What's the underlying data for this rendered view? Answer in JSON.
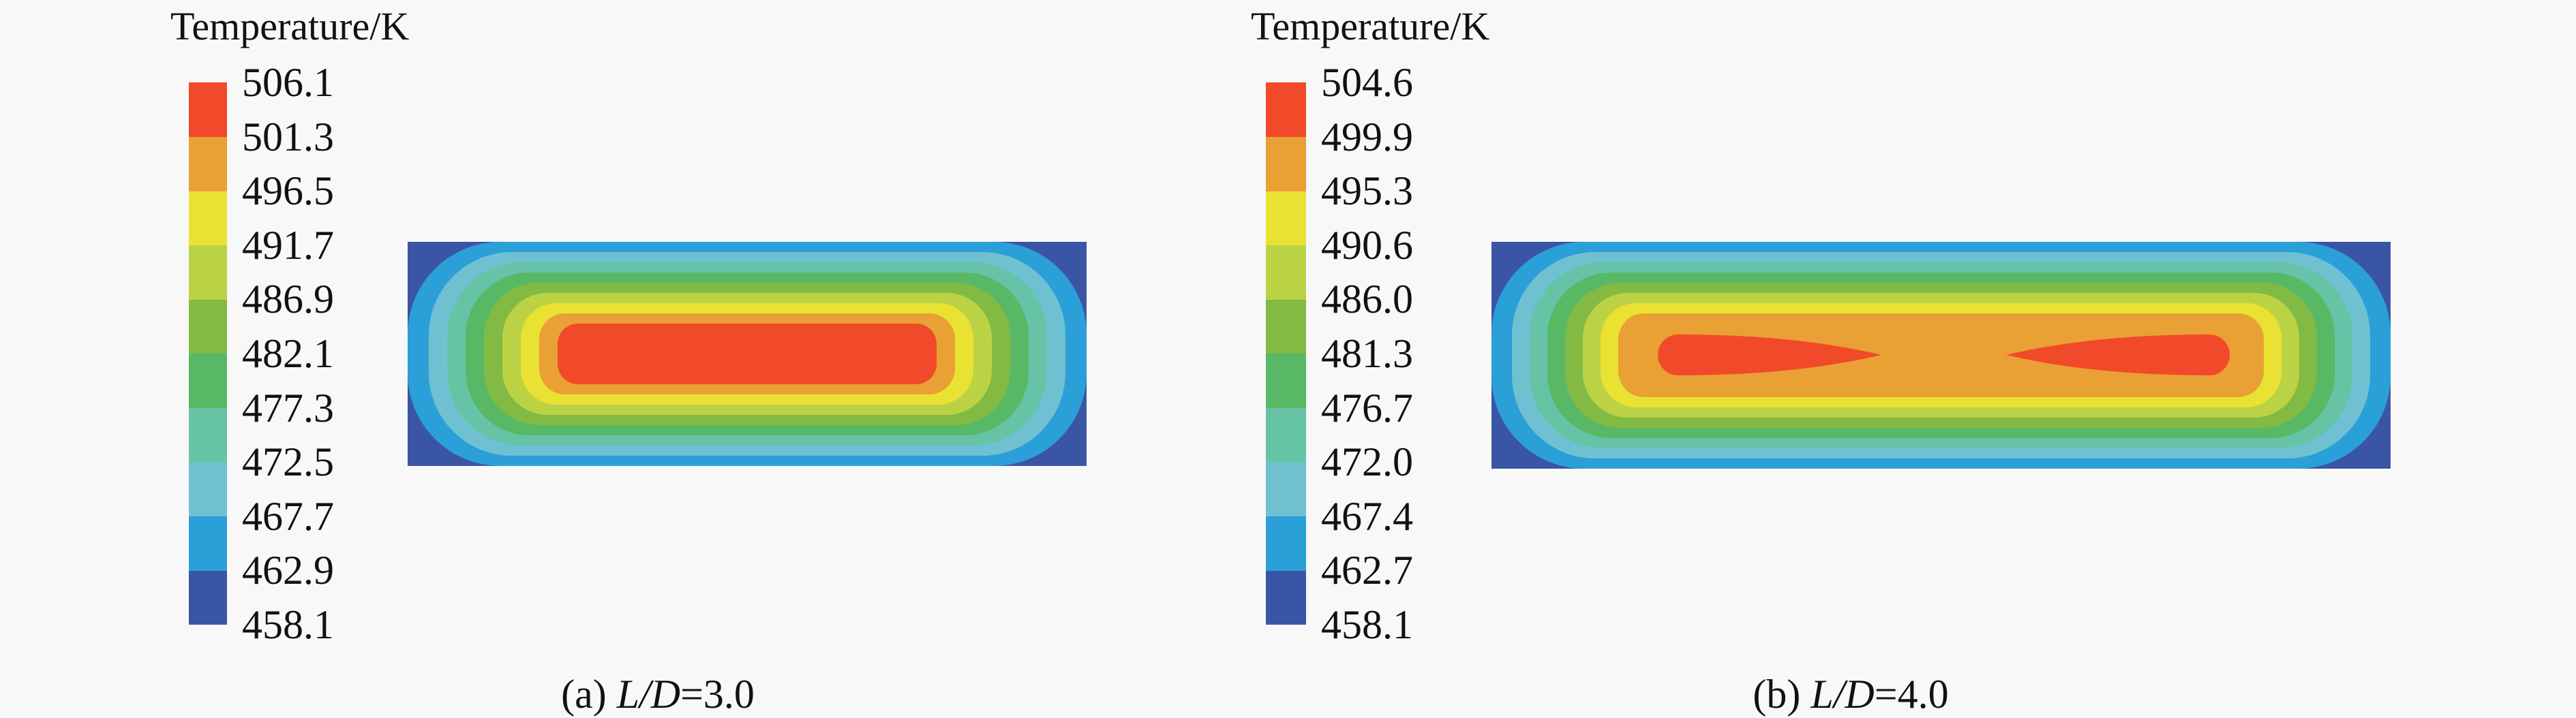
{
  "chart_data": [
    {
      "type": "heatmap",
      "title": "Temperature/K",
      "caption_prefix": "(a) ",
      "caption_var": "L/D",
      "caption_value": "=3.0",
      "legend_ticks": [
        "506.1",
        "501.3",
        "496.5",
        "491.7",
        "486.9",
        "482.1",
        "477.3",
        "472.5",
        "467.7",
        "462.9",
        "458.1"
      ],
      "range": [
        458.1,
        506.1
      ],
      "hot_core": "single elongated core",
      "grid": false
    },
    {
      "type": "heatmap",
      "title": "Temperature/K",
      "caption_prefix": "(b) ",
      "caption_var": "L/D",
      "caption_value": "=4.0",
      "legend_ticks": [
        "504.6",
        "499.9",
        "495.3",
        "490.6",
        "486.0",
        "481.3",
        "476.7",
        "472.0",
        "467.4",
        "462.7",
        "458.1"
      ],
      "range": [
        458.1,
        504.6
      ],
      "hot_core": "two separate cores",
      "grid": false
    }
  ],
  "colormap": [
    "#3b55a5",
    "#2b9fd8",
    "#6fc1d2",
    "#66c3a6",
    "#58b865",
    "#82ba44",
    "#bcd245",
    "#e9e232",
    "#e9a034",
    "#f04a2a"
  ]
}
